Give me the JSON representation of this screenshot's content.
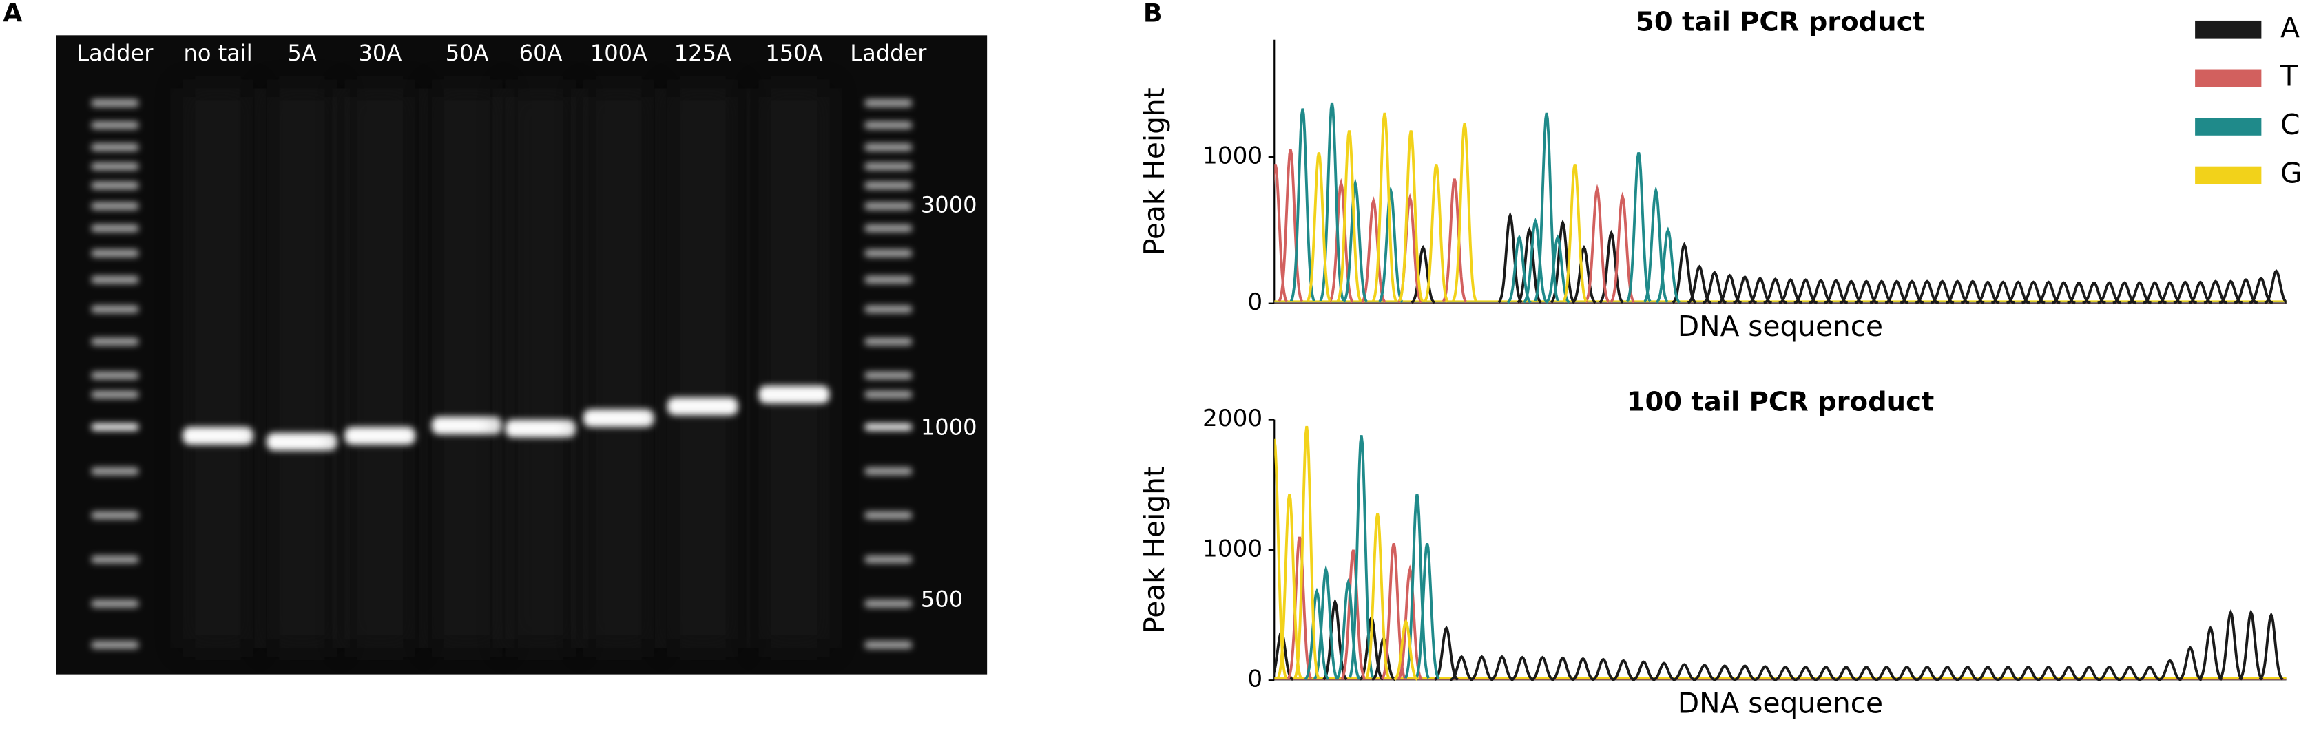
{
  "gel": {
    "panel_label": "A",
    "lanes": [
      "Ladder",
      "no tail",
      "5A",
      "30A",
      "50A",
      "60A",
      "100A",
      "125A",
      "150A",
      "Ladder"
    ],
    "markers": [
      "3000",
      "1000",
      "500"
    ]
  },
  "panel_label_b": "B",
  "chart_data": [
    {
      "type": "chromatogram",
      "title": "50 tail PCR product",
      "xlabel": "DNA sequence",
      "ylabel": "Peak Height",
      "xlim": [
        0,
        100
      ],
      "ylim": [
        0,
        1800
      ],
      "yticks": [
        0,
        1000
      ],
      "legend": "upper right",
      "series": [
        {
          "name": "A",
          "color": "#1a1a1a",
          "x": [
            14.7,
            23.3,
            25.2,
            28.5,
            30.6,
            33.3,
            40.5,
            42,
            43.5,
            45,
            46.5,
            48,
            49.5,
            51,
            52.5,
            54,
            55.5,
            57,
            58.5,
            60,
            61.5,
            63,
            64.5,
            66,
            67.5,
            69,
            70.5,
            72,
            73.5,
            75,
            76.5,
            78,
            79.5,
            81,
            82.5,
            84,
            85.5,
            87,
            88.5,
            90,
            91.5,
            93,
            94.5,
            96,
            97.5,
            99
          ],
          "values": [
            380,
            600,
            500,
            550,
            380,
            480,
            400,
            250,
            210,
            190,
            180,
            170,
            165,
            160,
            160,
            155,
            155,
            150,
            150,
            150,
            150,
            150,
            150,
            150,
            150,
            150,
            145,
            145,
            145,
            145,
            145,
            140,
            140,
            140,
            140,
            140,
            140,
            140,
            140,
            145,
            145,
            150,
            150,
            160,
            170,
            220
          ]
        },
        {
          "name": "T",
          "color": "#d2605e",
          "x": [
            0.1,
            1.6,
            6.6,
            9.8,
            13.4,
            17.8,
            31.9,
            34.4
          ],
          "values": [
            950,
            1050,
            820,
            700,
            720,
            850,
            780,
            730
          ]
        },
        {
          "name": "C",
          "color": "#1f8a8a",
          "x": [
            2.8,
            5.7,
            8.0,
            11.5,
            24.2,
            25.8,
            26.9,
            28.0,
            36.0,
            37.7,
            38.9
          ],
          "values": [
            1330,
            1370,
            820,
            770,
            450,
            560,
            1300,
            450,
            1030,
            770,
            500
          ]
        },
        {
          "name": "G",
          "color": "#f2d21a",
          "x": [
            4.4,
            7.4,
            10.9,
            13.5,
            16.0,
            18.8,
            29.7
          ],
          "values": [
            1030,
            1180,
            1300,
            1180,
            950,
            1230,
            950
          ]
        }
      ]
    },
    {
      "type": "chromatogram",
      "title": "100 tail PCR product",
      "xlabel": "DNA sequence",
      "ylabel": "Peak Height",
      "xlim": [
        0,
        100
      ],
      "ylim": [
        0,
        2000
      ],
      "yticks": [
        0,
        1000,
        2000
      ],
      "series": [
        {
          "name": "A",
          "color": "#1a1a1a",
          "x": [
            0.7,
            6.0,
            9.6,
            10.8,
            17.0,
            18.5,
            20.5,
            22.5,
            24.5,
            26.5,
            28.5,
            30.5,
            32.5,
            34.5,
            36.5,
            38.5,
            40.5,
            42.5,
            44.5,
            46.5,
            48.5,
            50.5,
            52.5,
            54.5,
            56.5,
            58.5,
            60.5,
            62.5,
            64.5,
            66.5,
            68.5,
            70.5,
            72.5,
            74.5,
            76.5,
            78.5,
            80.5,
            82.5,
            84.5,
            86.5,
            88.5,
            90.5,
            92.5,
            94.5,
            96.5,
            98.5
          ],
          "values": [
            370,
            600,
            480,
            320,
            400,
            180,
            180,
            180,
            175,
            175,
            170,
            165,
            160,
            150,
            140,
            130,
            120,
            115,
            110,
            110,
            105,
            100,
            100,
            100,
            100,
            100,
            100,
            100,
            100,
            100,
            100,
            100,
            100,
            100,
            100,
            100,
            100,
            100,
            100,
            100,
            150,
            250,
            400,
            520,
            520,
            500
          ]
        },
        {
          "name": "T",
          "color": "#d2605e",
          "x": [
            2.5,
            7.8,
            11.8,
            13.4
          ],
          "values": [
            1100,
            1000,
            1050,
            850
          ]
        },
        {
          "name": "C",
          "color": "#1f8a8a",
          "x": [
            4.2,
            5.1,
            7.3,
            8.6,
            14.1,
            15.1
          ],
          "values": [
            680,
            850,
            750,
            1880,
            1430,
            1050
          ]
        },
        {
          "name": "G",
          "color": "#f2d21a",
          "x": [
            0,
            1.5,
            3.2,
            10.2,
            13.0
          ],
          "values": [
            1850,
            1430,
            1950,
            1280,
            450
          ]
        }
      ]
    }
  ]
}
